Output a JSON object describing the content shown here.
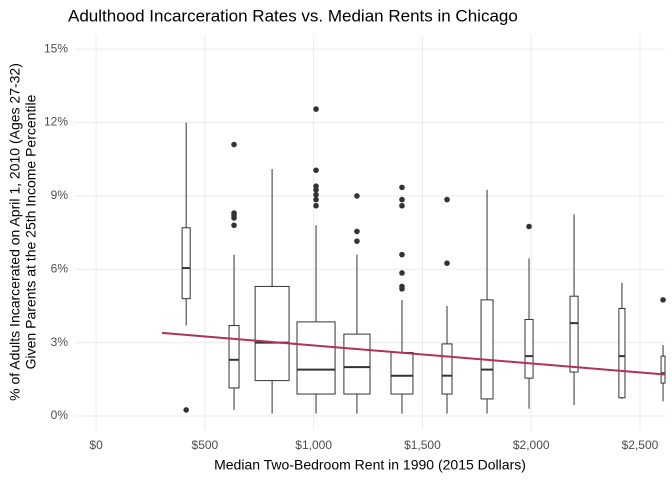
{
  "chart_data": {
    "type": "box",
    "title": "Adulthood Incarceration Rates vs. Median Rents in Chicago",
    "x_label": "Median Two-Bedroom Rent in 1990 (2015 Dollars)",
    "y_label": [
      "% of Adults Incarcerated on April 1, 2010 (Ages 27-32)",
      "Given Parents at the 25th Income Percentile"
    ],
    "xlim": [
      -97,
      2615
    ],
    "ylim": [
      -0.57,
      15.58
    ],
    "xticks": [
      {
        "value": 0,
        "label": "$0"
      },
      {
        "value": 500,
        "label": "$500"
      },
      {
        "value": 1000,
        "label": "$1,000"
      },
      {
        "value": 1500,
        "label": "$1,500"
      },
      {
        "value": 2000,
        "label": "$2,000"
      },
      {
        "value": 2500,
        "label": "$2,500"
      }
    ],
    "yticks": [
      {
        "value": 0,
        "label": "0%"
      },
      {
        "value": 3,
        "label": "3%"
      },
      {
        "value": 6,
        "label": "6%"
      },
      {
        "value": 9,
        "label": "9%"
      },
      {
        "value": 12,
        "label": "12%"
      },
      {
        "value": 15,
        "label": "15%"
      }
    ],
    "grid": true,
    "box_color": "#333333",
    "boxes": [
      {
        "x": 414,
        "width": 37,
        "low": 3.7,
        "q1": 4.8,
        "median": 6.05,
        "q3": 7.7,
        "high": 12.0,
        "outliers": [
          0.25
        ]
      },
      {
        "x": 634,
        "width": 46,
        "low": 0.25,
        "q1": 1.15,
        "median": 2.3,
        "q3": 3.7,
        "high": 6.6,
        "outliers": [
          11.1,
          8.3,
          8.2,
          8.1,
          7.8
        ]
      },
      {
        "x": 809,
        "width": 156,
        "low": 0.1,
        "q1": 1.45,
        "median": 3.0,
        "q3": 5.3,
        "high": 10.1,
        "outliers": []
      },
      {
        "x": 1011,
        "width": 175,
        "low": 0.1,
        "q1": 0.9,
        "median": 1.9,
        "q3": 3.85,
        "high": 7.8,
        "outliers": [
          12.55,
          10.05,
          9.4,
          9.25,
          9.05,
          8.85,
          8.6
        ]
      },
      {
        "x": 1199,
        "width": 120,
        "low": 0.1,
        "q1": 0.9,
        "median": 2.0,
        "q3": 3.35,
        "high": 6.6,
        "outliers": [
          9.0,
          7.55,
          7.15
        ]
      },
      {
        "x": 1406,
        "width": 101,
        "low": 0.1,
        "q1": 0.9,
        "median": 1.65,
        "q3": 2.6,
        "high": 4.75,
        "outliers": [
          9.35,
          8.85,
          8.6,
          6.6,
          5.85,
          5.3,
          5.2
        ]
      },
      {
        "x": 1613,
        "width": 46,
        "low": 0.1,
        "q1": 0.9,
        "median": 1.65,
        "q3": 2.95,
        "high": 4.5,
        "outliers": [
          8.85,
          6.25
        ]
      },
      {
        "x": 1797,
        "width": 55,
        "low": 0.1,
        "q1": 0.7,
        "median": 1.9,
        "q3": 4.75,
        "high": 9.25,
        "outliers": []
      },
      {
        "x": 1990,
        "width": 37,
        "low": 0.3,
        "q1": 1.55,
        "median": 2.45,
        "q3": 3.95,
        "high": 6.45,
        "outliers": [
          7.75
        ]
      },
      {
        "x": 2197,
        "width": 37,
        "low": 0.45,
        "q1": 1.8,
        "median": 3.8,
        "q3": 4.9,
        "high": 8.25,
        "outliers": []
      },
      {
        "x": 2417,
        "width": 28,
        "low": 0.7,
        "q1": 0.75,
        "median": 2.45,
        "q3": 4.4,
        "high": 5.45,
        "outliers": []
      },
      {
        "x": 2606,
        "width": 18,
        "low": 0.6,
        "q1": 1.35,
        "median": 1.75,
        "q3": 2.45,
        "high": 2.9,
        "outliers": [
          4.75
        ]
      }
    ],
    "trend": {
      "color": "#b0305e",
      "x": [
        303,
        2615
      ],
      "values": [
        3.4,
        1.7
      ]
    }
  }
}
